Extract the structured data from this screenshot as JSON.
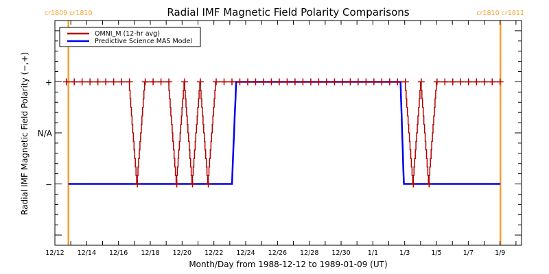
{
  "chart_data": {
    "type": "line",
    "title": "Radial IMF Magnetic Field Polarity Comparisons",
    "xlabel": "Month/Day from 1988-12-12 to 1989-01-09 (UT)",
    "ylabel": "Radial IMF Magnetic Field Polarity (−,+)",
    "x_units": "days since 1988-12-12 00:00 UT",
    "xlim": [
      0,
      29.35
    ],
    "ylim": [
      -2.2,
      2.2
    ],
    "x_ticks": [
      {
        "day": 0,
        "label": "12/12"
      },
      {
        "day": 2,
        "label": "12/14"
      },
      {
        "day": 4,
        "label": "12/16"
      },
      {
        "day": 6,
        "label": "12/18"
      },
      {
        "day": 8,
        "label": "12/20"
      },
      {
        "day": 10,
        "label": "12/22"
      },
      {
        "day": 12,
        "label": "12/24"
      },
      {
        "day": 14,
        "label": "12/26"
      },
      {
        "day": 16,
        "label": "12/28"
      },
      {
        "day": 18,
        "label": "12/30"
      },
      {
        "day": 20,
        "label": "1/1"
      },
      {
        "day": 22,
        "label": "1/3"
      },
      {
        "day": 24,
        "label": "1/5"
      },
      {
        "day": 26,
        "label": "1/7"
      },
      {
        "day": 28,
        "label": "1/9"
      }
    ],
    "y_ticks": [
      {
        "value": 1,
        "label": "+"
      },
      {
        "value": 0,
        "label": "N/A"
      },
      {
        "value": -1,
        "label": "−"
      }
    ],
    "legend_position": "top-left",
    "series": [
      {
        "name": "OMNI_M (12-hr avg)",
        "color": "#b00000",
        "marker": "plus",
        "x_start_day": 0.72,
        "x_step_day": 0.496,
        "values": [
          1,
          1,
          1,
          1,
          1,
          1,
          1,
          1,
          1,
          -1,
          1,
          1,
          1,
          1,
          -1,
          1,
          -1,
          1,
          -1,
          1,
          1,
          1,
          1,
          1,
          1,
          1,
          1,
          1,
          1,
          1,
          1,
          1,
          1,
          1,
          1,
          1,
          1,
          1,
          1,
          1,
          1,
          1,
          1,
          1,
          -1,
          1,
          -1,
          1,
          1,
          1,
          1,
          1,
          1,
          1,
          1,
          1
        ]
      },
      {
        "name": "Predictive Science MAS Model",
        "color": "#0000ee",
        "points": [
          [
            0.85,
            -1
          ],
          [
            11.14,
            -1
          ],
          [
            11.18,
            -0.67
          ],
          [
            11.22,
            -0.33
          ],
          [
            11.27,
            0
          ],
          [
            11.31,
            0.33
          ],
          [
            11.36,
            0.67
          ],
          [
            11.4,
            1
          ],
          [
            21.74,
            1
          ],
          [
            21.77,
            0.67
          ],
          [
            21.81,
            0.33
          ],
          [
            21.84,
            0
          ],
          [
            21.88,
            -0.33
          ],
          [
            21.91,
            -0.67
          ],
          [
            21.95,
            -1
          ],
          [
            28.02,
            -1
          ]
        ]
      }
    ],
    "carrington_boundaries": [
      {
        "day": 0.85,
        "label": "cr1809 cr1810"
      },
      {
        "day": 28.02,
        "label": "cr1810 cr1811"
      }
    ],
    "boundary_color": "#f7a032",
    "grid": false
  }
}
